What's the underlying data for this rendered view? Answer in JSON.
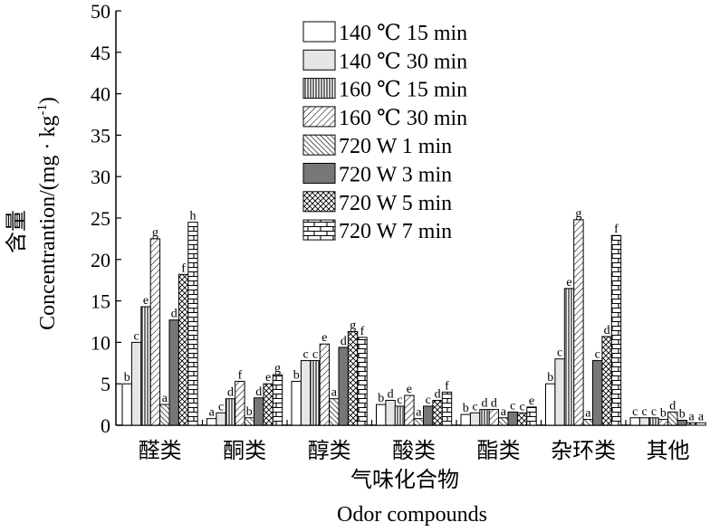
{
  "chart_data": {
    "type": "bar",
    "ylim": [
      0,
      50
    ],
    "yticks": [
      0,
      5,
      10,
      15,
      20,
      25,
      30,
      35,
      40,
      45,
      50
    ],
    "ylabel_cn": "含量",
    "ylabel_en": "Concentrantion/(mg · kg",
    "ylabel_en_sup": "-1",
    "ylabel_en_close": ")",
    "xlabel_cn": "气味化合物",
    "xlabel_en": "Odor compounds",
    "categories": [
      "醛类",
      "酮类",
      "醇类",
      "酸类",
      "酯类",
      "杂环类",
      "其他"
    ],
    "legend_position": "top-right",
    "series": [
      {
        "name": "140 ℃ 15 min",
        "pattern": "white",
        "values": [
          5.0,
          0.8,
          5.3,
          2.5,
          1.3,
          5.0,
          0.9
        ],
        "labels": [
          "b",
          "a",
          "b",
          "b",
          "b",
          "b",
          "c"
        ]
      },
      {
        "name": "140 ℃ 30 min",
        "pattern": "lightgray",
        "values": [
          10.0,
          1.5,
          7.8,
          3.0,
          1.5,
          8.0,
          0.9
        ],
        "labels": [
          "c",
          "c",
          "c",
          "d",
          "c",
          "c",
          "c"
        ]
      },
      {
        "name": "160 ℃ 15 min",
        "pattern": "vlines",
        "values": [
          14.3,
          3.2,
          7.8,
          2.3,
          1.9,
          16.5,
          0.9
        ],
        "labels": [
          "e",
          "d",
          "c",
          "c",
          "d",
          "e",
          "c"
        ]
      },
      {
        "name": "160 ℃ 30 min",
        "pattern": "fdiag",
        "values": [
          22.5,
          5.3,
          9.8,
          3.6,
          1.9,
          24.8,
          0.7
        ],
        "labels": [
          "g",
          "f",
          "e",
          "e",
          "d",
          "g",
          "b"
        ]
      },
      {
        "name": "720 W 1 min",
        "pattern": "bdiag",
        "values": [
          2.5,
          0.9,
          3.2,
          0.8,
          0.9,
          0.7,
          1.6
        ],
        "labels": [
          "a",
          "b",
          "a",
          "a",
          "a",
          "a",
          "d"
        ]
      },
      {
        "name": "720 W 3 min",
        "pattern": "darkgray",
        "values": [
          12.7,
          3.3,
          9.4,
          2.3,
          1.6,
          7.8,
          0.6
        ],
        "labels": [
          "d",
          "d",
          "d",
          "c",
          "c",
          "c",
          "b"
        ]
      },
      {
        "name": "720 W 5 min",
        "pattern": "cross",
        "values": [
          18.2,
          5.0,
          11.3,
          3.0,
          1.5,
          10.7,
          0.3
        ],
        "labels": [
          "f",
          "e",
          "g",
          "d",
          "c",
          "d",
          "a"
        ]
      },
      {
        "name": "720 W 7 min",
        "pattern": "brick",
        "values": [
          24.5,
          6.1,
          10.6,
          4.0,
          2.2,
          22.9,
          0.3
        ],
        "labels": [
          "h",
          "g",
          "f",
          "f",
          "e",
          "f",
          "a"
        ]
      }
    ]
  }
}
